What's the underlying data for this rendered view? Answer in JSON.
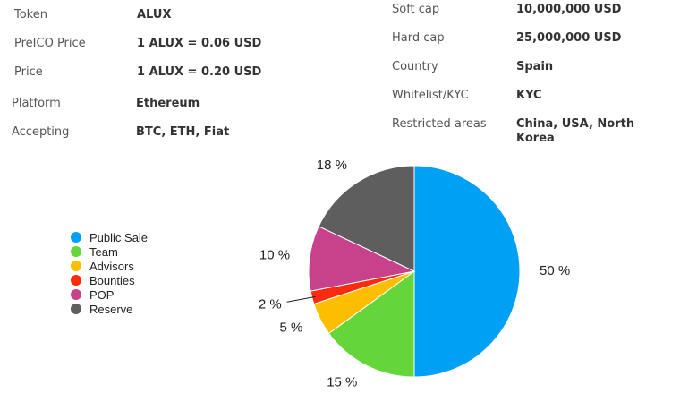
{
  "info_left": [
    {
      "label": "Token",
      "value": "ALUX"
    },
    {
      "label": "PreICO Price",
      "value": "1 ALUX = 0.06 USD"
    },
    {
      "label": "Price",
      "value": "1 ALUX = 0.20 USD"
    },
    {
      "label": "Platform",
      "value": "Ethereum"
    },
    {
      "label": "Accepting",
      "value": "BTC, ETH, Fiat"
    }
  ],
  "info_right": [
    {
      "label": "Soft cap",
      "value": "10,000,000 USD"
    },
    {
      "label": "Hard cap",
      "value": "25,000,000 USD"
    },
    {
      "label": "Country",
      "value": "Spain"
    },
    {
      "label": "Whitelist/KYC",
      "value": "KYC"
    },
    {
      "label": "Restricted areas",
      "value": "China, USA, North Korea"
    }
  ],
  "chart_data": {
    "type": "pie",
    "legend_position": "left",
    "categories": [
      "Public Sale",
      "Team",
      "Advisors",
      "Bounties",
      "POP",
      "Reserve"
    ],
    "values": [
      50,
      15,
      5,
      2,
      10,
      18
    ],
    "labels": [
      "50 %",
      "15 %",
      "5 %",
      "2 %",
      "10 %",
      "18 %"
    ],
    "colors": [
      "#00a1f5",
      "#64d63a",
      "#fdbd00",
      "#fb2c0d",
      "#c8418b",
      "#5e5e5e"
    ]
  }
}
